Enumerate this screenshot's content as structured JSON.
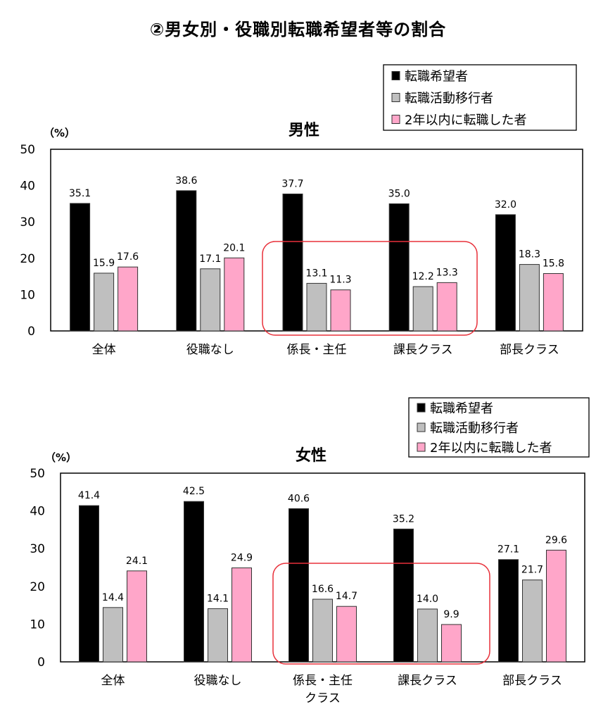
{
  "page": {
    "title": "②男女別・役職別転職希望者等の割合"
  },
  "colors": {
    "series1": "#000000",
    "series2": "#bfbfbf",
    "series3": "#ffa6c9",
    "highlight": "#e8303a"
  },
  "chart_data": [
    {
      "type": "bar",
      "title": "男性",
      "ylabel": "（%）",
      "ylim": [
        0,
        50
      ],
      "yticks": [
        "0",
        "10",
        "20",
        "30",
        "40",
        "50"
      ],
      "categories": [
        "全体",
        "役職なし",
        "係長・主任",
        "課長クラス",
        "部長クラス"
      ],
      "series": [
        {
          "name": "転職希望者",
          "values": [
            35.1,
            38.6,
            37.7,
            35.0,
            32.0
          ],
          "labels": [
            "35.1",
            "38.6",
            "37.7",
            "35.0",
            "32.0"
          ]
        },
        {
          "name": "転職活動移行者",
          "values": [
            15.9,
            17.1,
            13.1,
            12.2,
            18.3
          ],
          "labels": [
            "15.9",
            "17.1",
            "13.1",
            "12.2",
            "18.3"
          ]
        },
        {
          "name": "2年以内に転職した者",
          "values": [
            17.6,
            20.1,
            11.3,
            13.3,
            15.8
          ],
          "labels": [
            "17.6",
            "20.1",
            "11.3",
            "13.3",
            "15.8"
          ]
        }
      ],
      "legend_position": "top-right",
      "highlight_categories": [
        "係長・主任",
        "課長クラス"
      ]
    },
    {
      "type": "bar",
      "title": "女性",
      "ylabel": "（%）",
      "ylim": [
        0,
        50
      ],
      "yticks": [
        "0",
        "10",
        "20",
        "30",
        "40",
        "50"
      ],
      "categories": [
        "全体",
        "役職なし",
        "係長・主任\nクラス",
        "課長クラス",
        "部長クラス"
      ],
      "series": [
        {
          "name": "転職希望者",
          "values": [
            41.4,
            42.5,
            40.6,
            35.2,
            27.1
          ],
          "labels": [
            "41.4",
            "42.5",
            "40.6",
            "35.2",
            "27.1"
          ]
        },
        {
          "name": "転職活動移行者",
          "values": [
            14.4,
            14.1,
            16.6,
            14.0,
            21.7
          ],
          "labels": [
            "14.4",
            "14.1",
            "16.6",
            "14.0",
            "21.7"
          ]
        },
        {
          "name": "2年以内に転職した者",
          "values": [
            24.1,
            24.9,
            14.7,
            9.9,
            29.6
          ],
          "labels": [
            "24.1",
            "24.9",
            "14.7",
            "9.9",
            "29.6"
          ]
        }
      ],
      "legend_position": "top-right",
      "highlight_categories": [
        "係長・主任\nクラス",
        "課長クラス"
      ]
    }
  ]
}
